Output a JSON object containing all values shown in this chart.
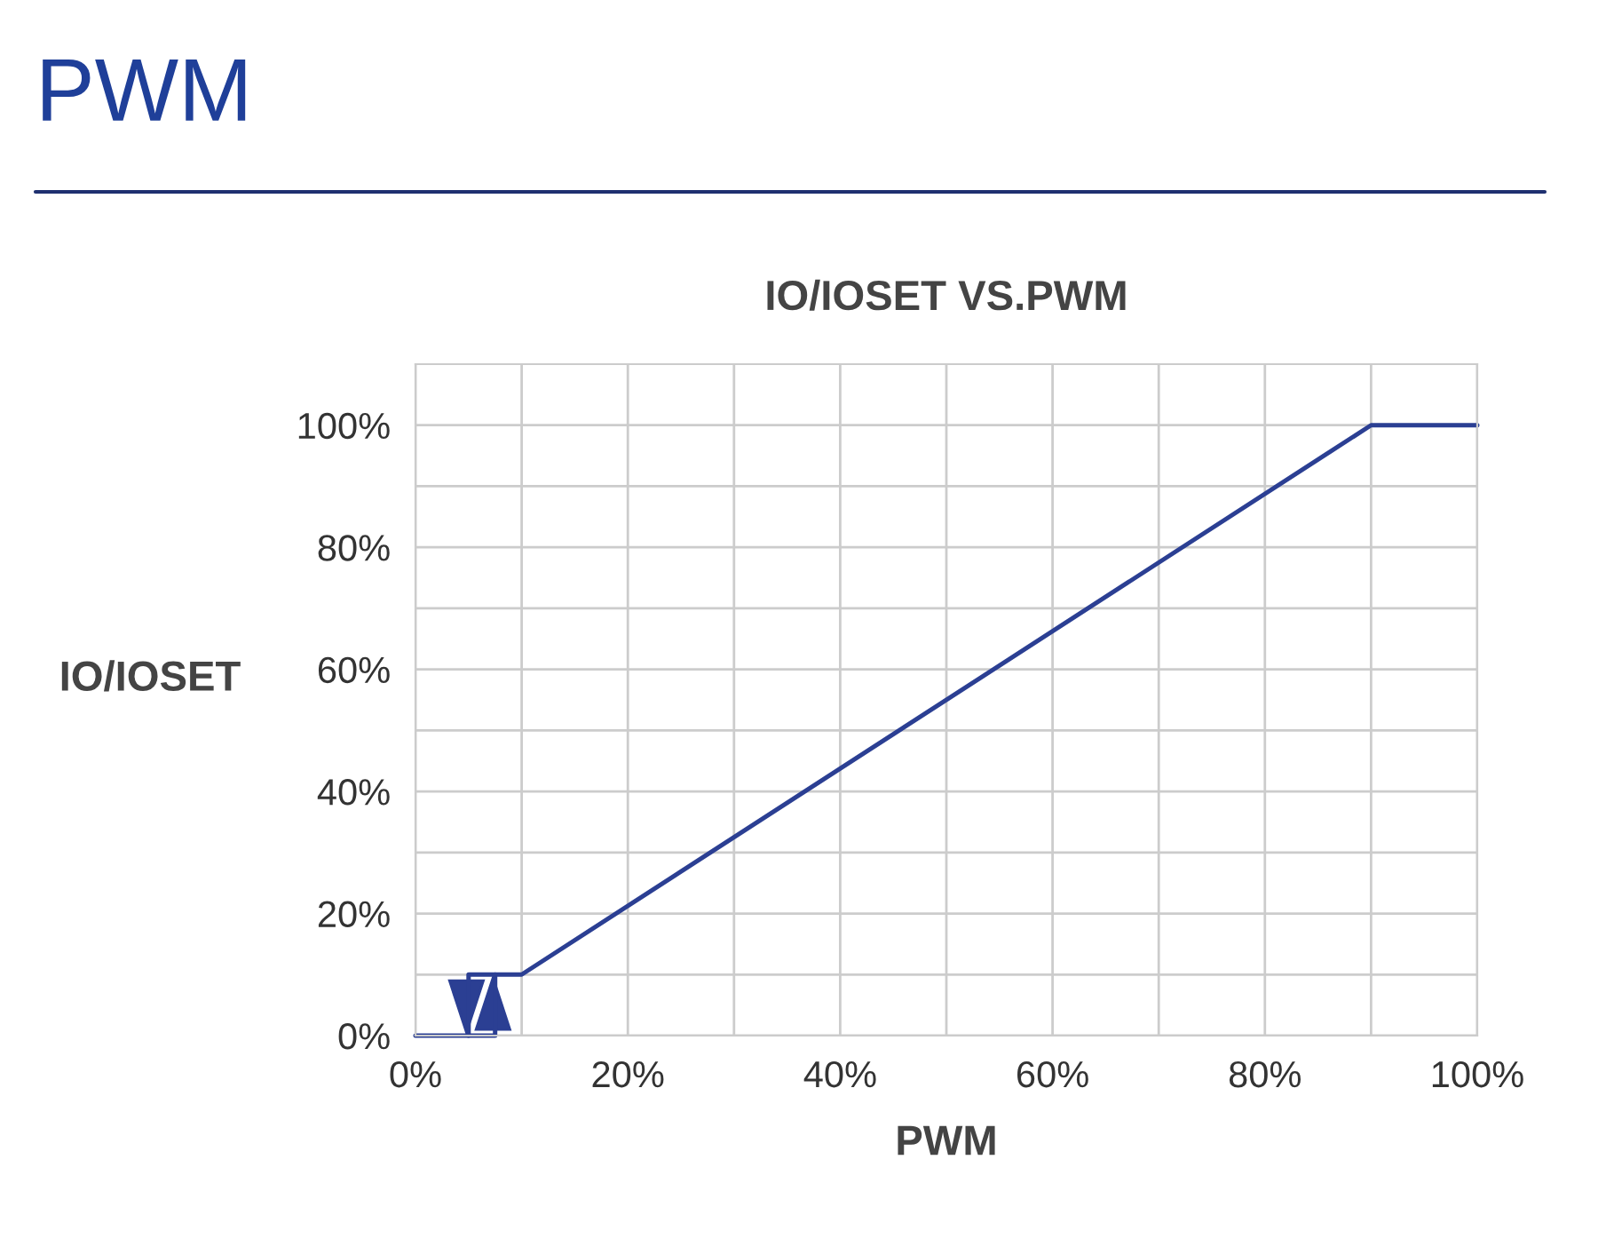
{
  "chart_data": {
    "type": "line",
    "title": "IO/IOSET VS.PWM",
    "xlabel": "PWM",
    "ylabel": "IO/IOSET",
    "annotations": [
      "PWM"
    ],
    "series": [
      {
        "color": "#2b3f93",
        "x": [
          0,
          7.5,
          7.5,
          10,
          90,
          100
        ],
        "values": [
          0,
          0,
          10,
          10,
          100,
          100
        ]
      },
      {
        "color": "#2b3f93",
        "x": [
          7.5,
          5,
          5
        ],
        "values": [
          10,
          10,
          0
        ]
      }
    ],
    "xlim": [
      0,
      100
    ],
    "ylim": [
      0,
      110
    ],
    "xticks": [
      {
        "value": 0,
        "label": "0%"
      },
      {
        "value": 10,
        "label": null
      },
      {
        "value": 20,
        "label": "20%"
      },
      {
        "value": 30,
        "label": null
      },
      {
        "value": 40,
        "label": "40%"
      },
      {
        "value": 50,
        "label": null
      },
      {
        "value": 60,
        "label": "60%"
      },
      {
        "value": 70,
        "label": null
      },
      {
        "value": 80,
        "label": "80%"
      },
      {
        "value": 90,
        "label": null
      },
      {
        "value": 100,
        "label": "100%"
      }
    ],
    "yticks": [
      {
        "value": 0,
        "label": "0%"
      },
      {
        "value": 10,
        "label": null
      },
      {
        "value": 20,
        "label": "20%"
      },
      {
        "value": 30,
        "label": null
      },
      {
        "value": 40,
        "label": "40%"
      },
      {
        "value": 50,
        "label": null
      },
      {
        "value": 60,
        "label": "60%"
      },
      {
        "value": 70,
        "label": null
      },
      {
        "value": 80,
        "label": "80%"
      },
      {
        "value": 90,
        "label": null
      },
      {
        "value": 100,
        "label": "100%"
      }
    ],
    "grid": true,
    "marker": "none",
    "line_style": "solid",
    "legend": false
  }
}
